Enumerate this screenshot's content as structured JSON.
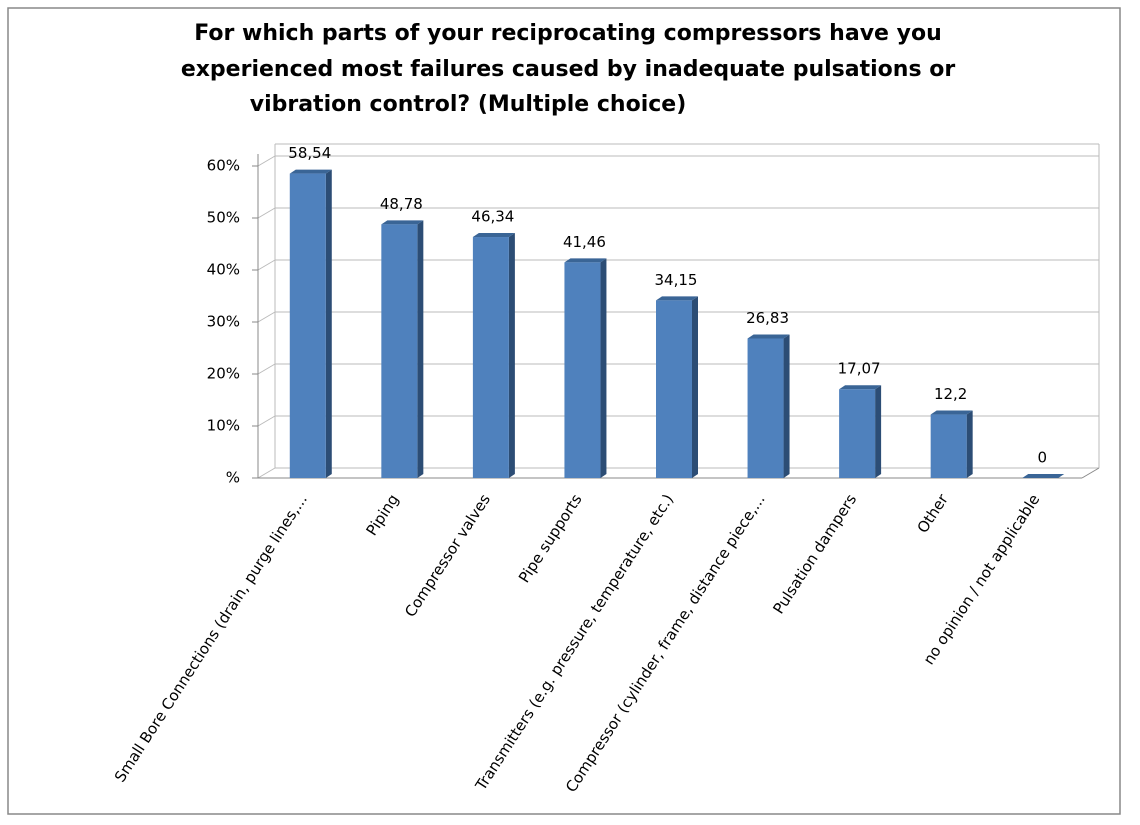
{
  "chart_data": {
    "type": "bar",
    "title": [
      "For which parts of your reciprocating compressors have you",
      "experienced most failures caused by inadequate pulsations or",
      "vibration control? (Multiple choice)"
    ],
    "categories": [
      "Small Bore Connections (drain, purge lines,...",
      "Piping",
      "Compressor valves",
      "Pipe supports",
      "Transmitters (e.g. pressure, temperature, etc.)",
      "Compressor (cylinder, frame, distance piece,...",
      "Pulsation dampers",
      "Other",
      "no opinion / not applicable"
    ],
    "values": [
      58.54,
      48.78,
      46.34,
      41.46,
      34.15,
      26.83,
      17.07,
      12.2,
      0
    ],
    "value_labels": [
      "58,54",
      "48,78",
      "46,34",
      "41,46",
      "34,15",
      "26,83",
      "17,07",
      "12,2",
      "0"
    ],
    "color": "#4f81bd",
    "ylim": [
      0,
      60
    ],
    "yticks": [
      {
        "value": 0,
        "label": "%"
      },
      {
        "value": 10,
        "label": "10%"
      },
      {
        "value": 20,
        "label": "20%"
      },
      {
        "value": 30,
        "label": "30%"
      },
      {
        "value": 40,
        "label": "40%"
      },
      {
        "value": 50,
        "label": "50%"
      },
      {
        "value": 60,
        "label": "60%"
      }
    ],
    "grid": true
  }
}
